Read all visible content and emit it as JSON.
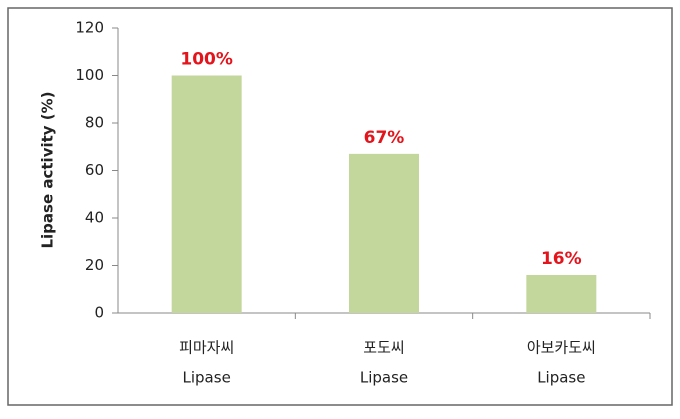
{
  "chart_data": {
    "type": "bar",
    "y_label": "Lipase activity (%)",
    "categories": [
      [
        "피마자씨",
        "Lipase"
      ],
      [
        "포도씨",
        "Lipase"
      ],
      [
        "아보카도씨",
        "Lipase"
      ]
    ],
    "values": [
      100,
      67,
      16
    ],
    "value_labels": [
      "100%",
      "67%",
      "16%"
    ],
    "color": "#c3d69b",
    "label_color": "#e3141c",
    "ylim": [
      0,
      120
    ],
    "yticks": [
      0,
      20,
      40,
      60,
      80,
      100,
      120
    ],
    "grid": false
  }
}
